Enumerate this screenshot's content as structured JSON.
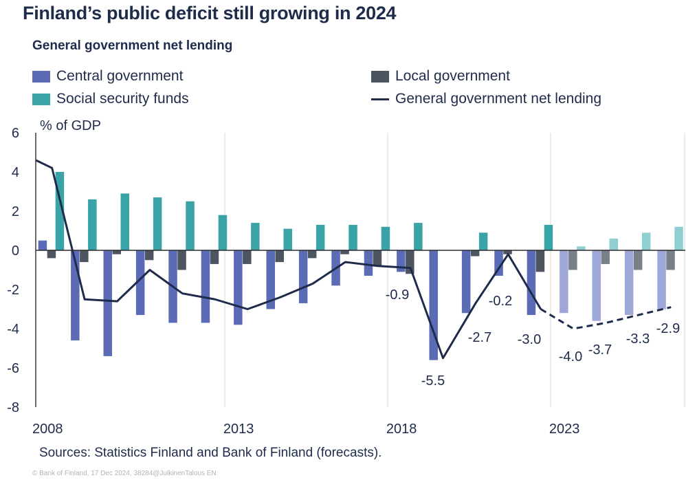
{
  "chart_data": {
    "type": "bar",
    "title": "Finland’s public deficit still growing in 2024",
    "subtitle": "General government net lending",
    "ylabel": "% of GDP",
    "ylim": [
      -8,
      6
    ],
    "yticks": [
      6,
      4,
      2,
      0,
      -2,
      -4,
      -6,
      -8
    ],
    "x": [
      2008,
      2009,
      2010,
      2011,
      2012,
      2013,
      2014,
      2015,
      2016,
      2017,
      2018,
      2019,
      2020,
      2021,
      2022,
      2023,
      2024,
      2025,
      2026,
      2027
    ],
    "xtick_labels": [
      {
        "year": 2008,
        "label": "2008"
      },
      {
        "year": 2013,
        "label": "2013"
      },
      {
        "year": 2018,
        "label": "2018"
      },
      {
        "year": 2023,
        "label": "2023"
      }
    ],
    "forecast_from": 2024,
    "grid": "vertical lines at tick years",
    "legend_placement": "top",
    "series": [
      {
        "name": "Central government",
        "kind": "bar",
        "color": "#5b6bb5",
        "forecast_color": "#9ea8d8",
        "values": [
          0.5,
          -4.6,
          -5.4,
          -3.3,
          -3.7,
          -3.7,
          -3.8,
          -3.0,
          -2.7,
          -1.8,
          -1.3,
          -1.1,
          -5.6,
          -3.2,
          -1.3,
          -3.3,
          -3.2,
          -3.6,
          -3.3,
          -3.0
        ]
      },
      {
        "name": "Local government",
        "kind": "bar",
        "color": "#4d5560",
        "forecast_color": "#7b8088",
        "values": [
          -0.4,
          -0.6,
          -0.2,
          -0.5,
          -1.0,
          -0.7,
          -0.7,
          -0.6,
          -0.4,
          -0.2,
          -0.8,
          -1.2,
          0.0,
          -0.3,
          -0.2,
          -1.1,
          -1.0,
          -0.7,
          -1.0,
          -1.0
        ]
      },
      {
        "name": "Social security funds",
        "kind": "bar",
        "color": "#3aa3a8",
        "forecast_color": "#8fcfd2",
        "values": [
          4.0,
          2.6,
          2.9,
          2.7,
          2.5,
          1.8,
          1.4,
          1.1,
          1.3,
          1.3,
          1.2,
          1.4,
          0.0,
          0.9,
          0.0,
          1.3,
          0.2,
          0.6,
          0.9,
          1.2
        ]
      },
      {
        "name": "General government net lending",
        "kind": "line",
        "color": "#1e2b4a",
        "x": [
          2007.5,
          2008,
          2009,
          2010,
          2011,
          2012,
          2013,
          2014,
          2015,
          2016,
          2017,
          2018,
          2019,
          2020,
          2021,
          2022,
          2023,
          2024,
          2025,
          2026,
          2027
        ],
        "values": [
          4.6,
          4.2,
          -2.5,
          -2.6,
          -1.0,
          -2.2,
          -2.5,
          -3.0,
          -2.4,
          -1.7,
          -0.6,
          -0.8,
          -0.9,
          -5.5,
          -2.7,
          -0.2,
          -3.0,
          -4.0,
          -3.7,
          -3.3,
          -2.9
        ],
        "dashed_from": 2023
      }
    ],
    "data_labels": [
      {
        "year": 2019,
        "text": "-0.9"
      },
      {
        "year": 2020,
        "text": "-5.5"
      },
      {
        "year": 2021,
        "text": "-2.7"
      },
      {
        "year": 2022,
        "text": "-0.2"
      },
      {
        "year": 2023,
        "text": "-3.0"
      },
      {
        "year": 2024,
        "text": "-4.0"
      },
      {
        "year": 2025,
        "text": "-3.7"
      },
      {
        "year": 2026,
        "text": "-3.3"
      },
      {
        "year": 2027,
        "text": "-2.9"
      }
    ]
  },
  "legend": {
    "central": "Central government",
    "local": "Local government",
    "social": "Social security funds",
    "line": "General government net lending"
  },
  "colors": {
    "central": "#5b6bb5",
    "local": "#4d5560",
    "social": "#3aa3a8",
    "line": "#1e2b4a",
    "grid": "#d9d9d9"
  },
  "source": "Sources: Statistics Finland and Bank of Finland (forecasts).",
  "footer": "© Bank of Finland, 17 Dec 2024, 38284@JulkinenTalous EN"
}
